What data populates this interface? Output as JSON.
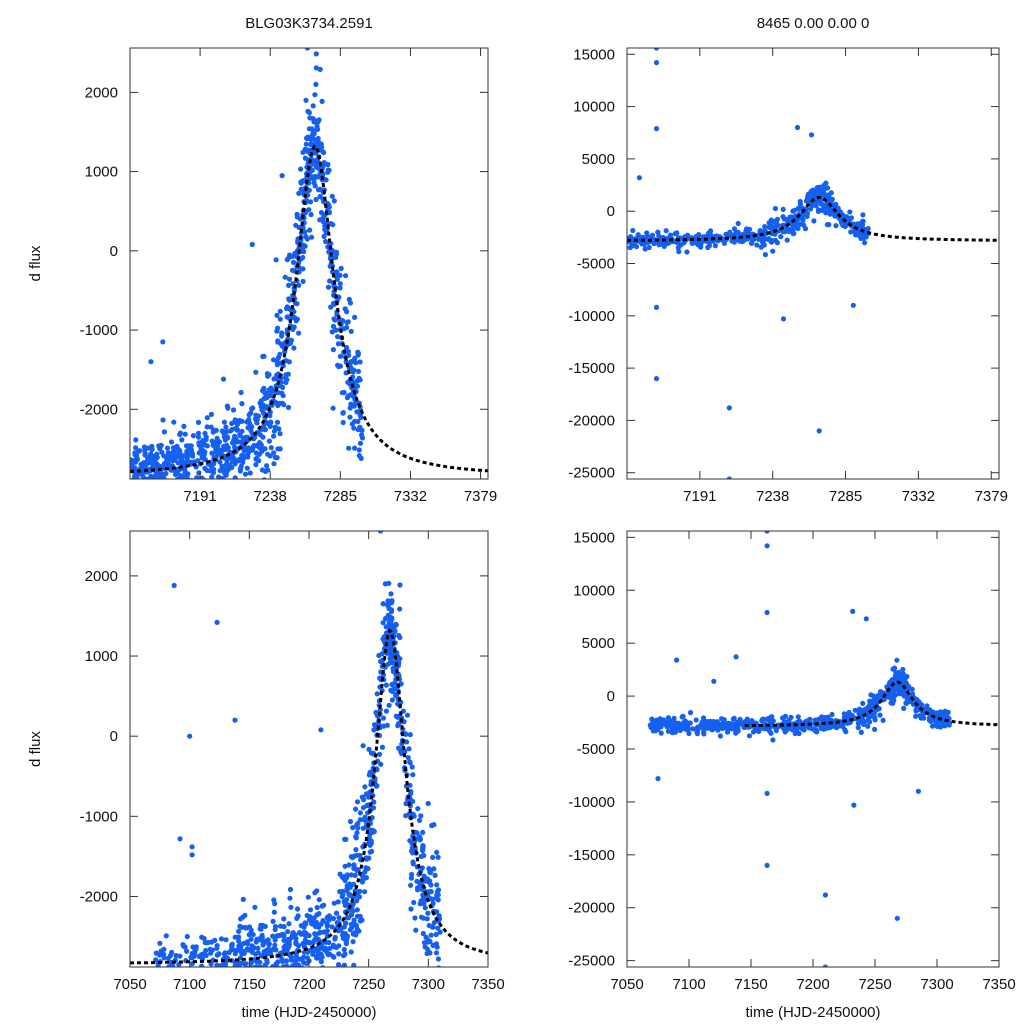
{
  "chart_data": [
    {
      "id": "top-left",
      "type": "scatter",
      "title": "BLG03K3734.2591",
      "ylabel": "d flux",
      "xlabel": "",
      "xlim": [
        7144,
        7384
      ],
      "ylim": [
        -2880,
        2560
      ],
      "xticks": [
        7191,
        7238,
        7285,
        7332,
        7379
      ],
      "yticks": [
        -2000,
        -1000,
        0,
        1000,
        2000
      ],
      "model": {
        "t0": 7268,
        "peak": 1320,
        "base": -2850,
        "width": 15.5
      },
      "points_color": "#1560f0",
      "seed": 11,
      "segments": [
        [
          7144,
          7180,
          -2500,
          420,
          260
        ],
        [
          7180,
          7232,
          -2400,
          550,
          300
        ],
        [
          7232,
          7262,
          -700,
          900,
          240
        ],
        [
          7262,
          7276,
          800,
          700,
          150
        ],
        [
          7276,
          7300,
          -1000,
          900,
          170
        ]
      ],
      "outliers": [
        [
          7226,
          80
        ],
        [
          7166,
          -1150
        ],
        [
          7158,
          -1400
        ],
        [
          7246,
          950
        ],
        [
          7263,
          2560
        ],
        [
          7262,
          1900
        ]
      ]
    },
    {
      "id": "top-right",
      "type": "scatter",
      "title": "8465  0.00  0.00  0",
      "ylabel": "",
      "xlabel": "",
      "xlim": [
        7144,
        7384
      ],
      "ylim": [
        -25600,
        15600
      ],
      "xticks": [
        7191,
        7238,
        7285,
        7332,
        7379
      ],
      "yticks": [
        -25000,
        -20000,
        -15000,
        -10000,
        -5000,
        0,
        5000,
        10000,
        15000
      ],
      "model": {
        "t0": 7268,
        "peak": 1320,
        "base": -2850,
        "width": 15.5
      },
      "points_color": "#1560f0",
      "seed": 23,
      "segments": [
        [
          7144,
          7230,
          -2700,
          700,
          230
        ],
        [
          7230,
          7262,
          -1200,
          1400,
          120
        ],
        [
          7262,
          7276,
          600,
          1500,
          90
        ],
        [
          7276,
          7300,
          -2300,
          900,
          110
        ]
      ],
      "outliers": [
        [
          7163,
          15600
        ],
        [
          7163,
          14200
        ],
        [
          7163,
          7900
        ],
        [
          7254,
          8000
        ],
        [
          7263,
          7300
        ],
        [
          7152,
          3200
        ],
        [
          7163,
          -9200
        ],
        [
          7163,
          -16000
        ],
        [
          7210,
          -18800
        ],
        [
          7268,
          -21000
        ],
        [
          7210,
          -25600
        ],
        [
          7245,
          -10300
        ],
        [
          7290,
          -9000
        ]
      ]
    },
    {
      "id": "bottom-left",
      "type": "scatter",
      "title": "",
      "ylabel": "d flux",
      "xlabel": "time (HJD-2450000)",
      "xlim": [
        7050,
        7350
      ],
      "ylim": [
        -2880,
        2560
      ],
      "xticks": [
        7050,
        7100,
        7150,
        7200,
        7250,
        7300,
        7350
      ],
      "yticks": [
        -2000,
        -1000,
        0,
        1000,
        2000
      ],
      "model": {
        "t0": 7268,
        "peak": 1320,
        "base": -2850,
        "width": 15.5
      },
      "points_color": "#1560f0",
      "seed": 37,
      "segments": [
        [
          7068,
          7140,
          -2650,
          330,
          130
        ],
        [
          7140,
          7228,
          -2400,
          550,
          420
        ],
        [
          7228,
          7262,
          -700,
          950,
          240
        ],
        [
          7262,
          7276,
          800,
          700,
          150
        ],
        [
          7276,
          7310,
          -1400,
          1000,
          190
        ]
      ],
      "outliers": [
        [
          7087,
          1880
        ],
        [
          7100,
          0
        ],
        [
          7123,
          1420
        ],
        [
          7138,
          200
        ],
        [
          7210,
          80
        ],
        [
          7092,
          -1280
        ],
        [
          7102,
          -1380
        ],
        [
          7102,
          -1480
        ],
        [
          7260,
          2560
        ],
        [
          7264,
          1900
        ]
      ]
    },
    {
      "id": "bottom-right",
      "type": "scatter",
      "title": "",
      "ylabel": "",
      "xlabel": "time (HJD-2450000)",
      "xlim": [
        7050,
        7350
      ],
      "ylim": [
        -25600,
        15600
      ],
      "xticks": [
        7050,
        7100,
        7150,
        7200,
        7250,
        7300,
        7350
      ],
      "yticks": [
        -25000,
        -20000,
        -15000,
        -10000,
        -5000,
        0,
        5000,
        10000,
        15000
      ],
      "model": {
        "t0": 7268,
        "peak": 1320,
        "base": -2850,
        "width": 15.5,
        "xstart": 7145
      },
      "points_color": "#1560f0",
      "seed": 51,
      "segments": [
        [
          7068,
          7230,
          -3000,
          800,
          420
        ],
        [
          7230,
          7262,
          -1200,
          1400,
          120
        ],
        [
          7262,
          7276,
          600,
          1500,
          90
        ],
        [
          7276,
          7310,
          -2300,
          900,
          120
        ]
      ],
      "outliers": [
        [
          7163,
          15600
        ],
        [
          7163,
          14200
        ],
        [
          7163,
          7900
        ],
        [
          7232,
          8000
        ],
        [
          7243,
          7300
        ],
        [
          7090,
          3400
        ],
        [
          7138,
          3700
        ],
        [
          7163,
          -9200
        ],
        [
          7163,
          -16000
        ],
        [
          7210,
          -18800
        ],
        [
          7268,
          -21000
        ],
        [
          7210,
          -25600
        ],
        [
          7233,
          -10300
        ],
        [
          7285,
          -9000
        ],
        [
          7075,
          -7800
        ],
        [
          7120,
          1400
        ]
      ]
    }
  ]
}
